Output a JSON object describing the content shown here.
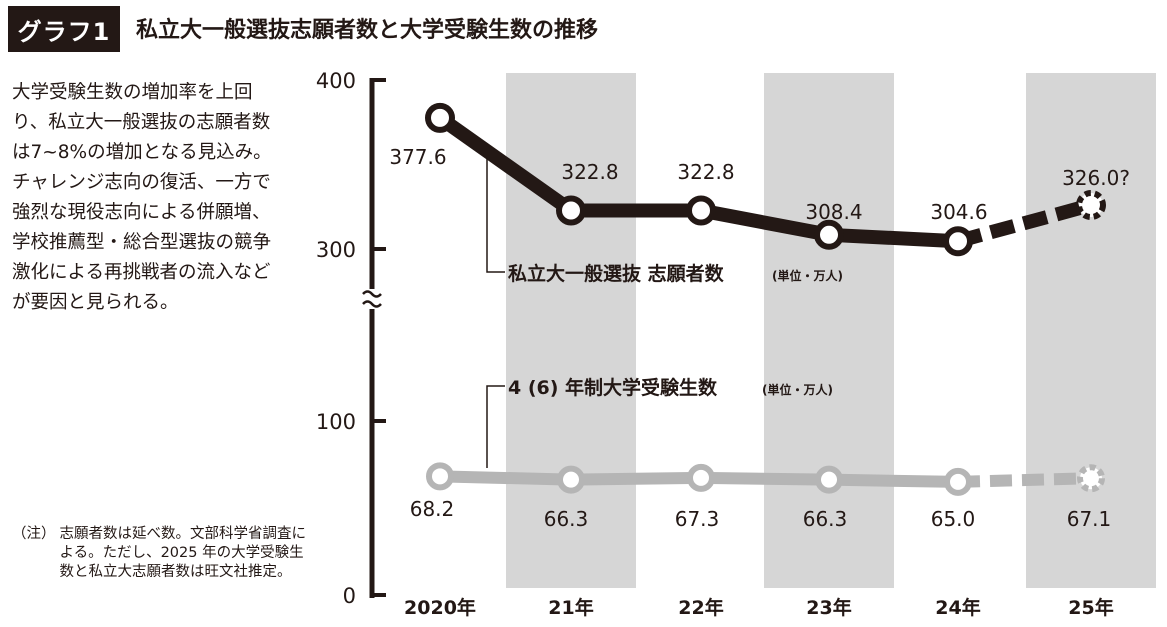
{
  "header": {
    "badge": "グラフ1",
    "title": "私立大一般選抜志願者数と大学受験生数の推移"
  },
  "description": "大学受験生数の増加率を上回り、私立大一般選抜の志願者数は7~8%の増加となる見込み。チャレンジ志向の復活、一方で強烈な現役志向による併願増、学校推薦型・総合型選抜の競争激化による再挑戦者の流入などが要因と見られる。",
  "note": {
    "mark": "（注）",
    "text": "志願者数は延べ数。文部科学省調査による。ただし、2025 年の大学受験生数と私立大志願者数は旺文社推定。"
  },
  "colors": {
    "series1": "#231815",
    "series2": "#b5b5b5",
    "band": "#d6d6d6",
    "axis": "#231815"
  },
  "chart_data": {
    "type": "line",
    "categories": [
      "2020年",
      "21年",
      "22年",
      "23年",
      "24年",
      "25年"
    ],
    "y_ticks": [
      "400",
      "300",
      "100",
      "0"
    ],
    "y_scale": "broken axis between 100 and 300",
    "ylim": [
      0,
      400
    ],
    "grid": false,
    "shaded_bands": [
      "21年",
      "23年",
      "25年"
    ],
    "series": [
      {
        "name": "私立大一般選抜 志願者数",
        "unit": "(単位・万人)",
        "values": [
          377.6,
          322.8,
          322.8,
          308.4,
          304.6,
          326.0
        ],
        "labels": [
          "377.6",
          "322.8",
          "322.8",
          "308.4",
          "304.6",
          "326.0?"
        ],
        "estimated_from_index": 5
      },
      {
        "name": "4 (6) 年制大学受験生数",
        "unit": "(単位・万人)",
        "values": [
          68.2,
          66.3,
          67.3,
          66.3,
          65.0,
          67.1
        ],
        "labels": [
          "68.2",
          "66.3",
          "67.3",
          "66.3",
          "65.0",
          "67.1"
        ],
        "estimated_from_index": 5
      }
    ]
  }
}
